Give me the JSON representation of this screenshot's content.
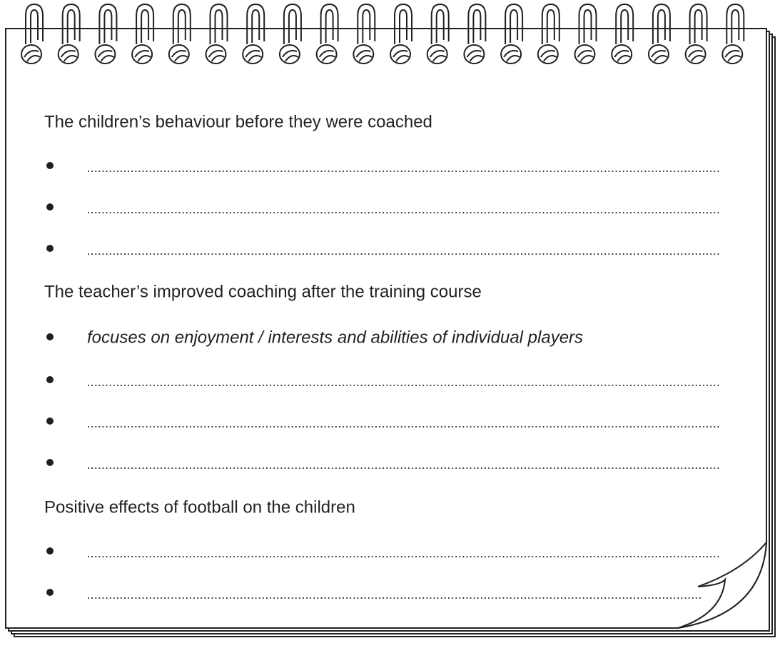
{
  "sections": [
    {
      "heading": "The children’s behaviour before they were coached"
    },
    {
      "heading": "The teacher’s improved coaching after the training course",
      "example": "focuses on enjoyment / interests and abilities of individual players"
    },
    {
      "heading": "Positive effects of football on the children"
    }
  ]
}
